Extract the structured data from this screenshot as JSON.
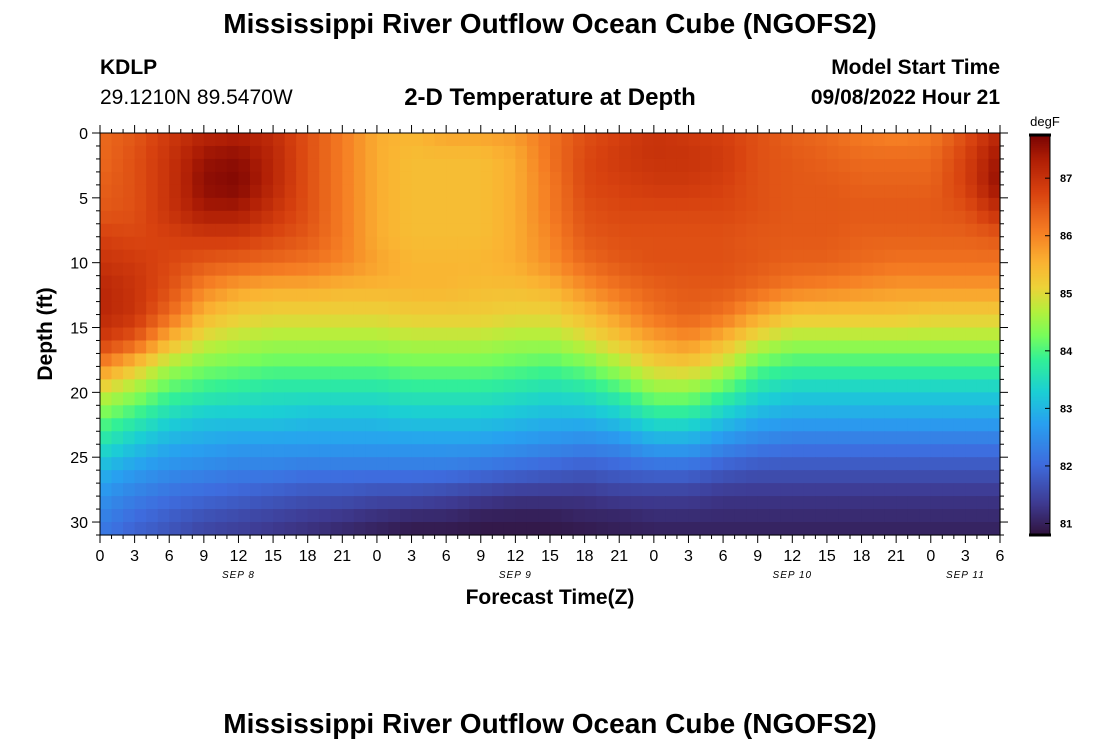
{
  "header": {
    "title": "Mississippi River Outflow Ocean Cube (NGOFS2)",
    "station": "KDLP",
    "coords": "29.1210N  89.5470W",
    "subtitle": "2-D Temperature at Depth",
    "model_start_label": "Model Start Time",
    "model_start_value": "09/08/2022 Hour 21"
  },
  "footer": {
    "title": "Mississippi River Outflow Ocean Cube (NGOFS2)"
  },
  "chart_data": {
    "type": "heatmap",
    "title": "2-D Temperature at Depth",
    "xlabel": "Forecast Time(Z)",
    "ylabel": "Depth (ft)",
    "x_range_hours": [
      0,
      78
    ],
    "y_range": [
      0,
      31
    ],
    "y_inverted": true,
    "x_tick_labels": [
      "0",
      "3",
      "6",
      "9",
      "12",
      "15",
      "18",
      "21",
      "0",
      "3",
      "6",
      "9",
      "12",
      "15",
      "18",
      "21",
      "0",
      "3",
      "6",
      "9",
      "12",
      "15",
      "18",
      "21",
      "0",
      "3",
      "6"
    ],
    "y_ticks": [
      0,
      5,
      10,
      15,
      20,
      25,
      30
    ],
    "date_labels": [
      {
        "label": "SEP 8",
        "hour": 12
      },
      {
        "label": "SEP 9",
        "hour": 36
      },
      {
        "label": "SEP 10",
        "hour": 60
      },
      {
        "label": "SEP 11",
        "hour": 75
      }
    ],
    "colorbar": {
      "unit": "degF",
      "min": 80.8,
      "max": 87.75,
      "ticks": [
        81,
        82,
        83,
        84,
        85,
        86,
        87
      ]
    },
    "time_nodes_hours": [
      0,
      3,
      6,
      9,
      12,
      15,
      18,
      21,
      24,
      27,
      30,
      33,
      36,
      39,
      42,
      45,
      48,
      51,
      54,
      57,
      60,
      63,
      66,
      69,
      72,
      75,
      78
    ],
    "depth_nodes_ft": [
      0,
      2,
      4,
      6,
      8,
      10,
      12,
      14,
      16,
      18,
      20,
      22,
      24,
      26,
      28,
      30,
      31
    ],
    "values_degF": [
      [
        86.3,
        86.5,
        86.9,
        87.2,
        87.3,
        87.1,
        86.6,
        86.1,
        85.6,
        85.5,
        85.7,
        85.7,
        85.8,
        86.2,
        86.6,
        86.8,
        87.0,
        86.9,
        86.8,
        86.6,
        86.4,
        86.3,
        86.1,
        86.0,
        86.1,
        86.6,
        87.2
      ],
      [
        86.3,
        86.6,
        87.0,
        87.5,
        87.6,
        87.2,
        86.6,
        86.1,
        85.6,
        85.4,
        85.4,
        85.4,
        85.6,
        86.2,
        86.7,
        86.9,
        87.0,
        87.0,
        86.9,
        86.6,
        86.5,
        86.4,
        86.3,
        86.3,
        86.3,
        86.8,
        87.5
      ],
      [
        86.4,
        86.6,
        87.0,
        87.6,
        87.7,
        87.2,
        86.6,
        86.1,
        85.6,
        85.4,
        85.4,
        85.4,
        85.6,
        86.1,
        86.7,
        86.8,
        86.9,
        86.9,
        86.8,
        86.6,
        86.5,
        86.5,
        86.4,
        86.4,
        86.4,
        86.8,
        87.6
      ],
      [
        86.5,
        86.6,
        87.0,
        87.4,
        87.4,
        87.0,
        86.6,
        86.1,
        85.6,
        85.4,
        85.4,
        85.4,
        85.6,
        86.1,
        86.6,
        86.7,
        86.7,
        86.7,
        86.7,
        86.6,
        86.5,
        86.5,
        86.5,
        86.5,
        86.5,
        86.6,
        87.1
      ],
      [
        86.8,
        86.7,
        86.8,
        86.9,
        86.9,
        86.7,
        86.5,
        86.1,
        85.6,
        85.4,
        85.4,
        85.4,
        85.6,
        86.0,
        86.5,
        86.6,
        86.6,
        86.6,
        86.6,
        86.5,
        86.5,
        86.5,
        86.4,
        86.4,
        86.4,
        86.4,
        86.5
      ],
      [
        87.0,
        86.9,
        86.7,
        86.5,
        86.4,
        86.3,
        86.2,
        86.0,
        85.7,
        85.5,
        85.5,
        85.5,
        85.6,
        85.9,
        86.3,
        86.5,
        86.6,
        86.6,
        86.6,
        86.5,
        86.4,
        86.4,
        86.3,
        86.2,
        86.2,
        86.2,
        86.2
      ],
      [
        87.2,
        87.0,
        86.6,
        86.0,
        85.7,
        85.6,
        85.6,
        85.5,
        85.5,
        85.5,
        85.5,
        85.4,
        85.4,
        85.5,
        85.9,
        86.2,
        86.4,
        86.5,
        86.5,
        86.3,
        86.1,
        86.0,
        85.9,
        85.8,
        85.8,
        85.8,
        85.8
      ],
      [
        87.2,
        87.0,
        86.3,
        85.5,
        85.2,
        85.1,
        85.1,
        85.1,
        85.1,
        85.2,
        85.2,
        85.2,
        85.1,
        85.1,
        85.4,
        85.8,
        86.2,
        86.4,
        86.2,
        85.7,
        85.3,
        85.3,
        85.3,
        85.3,
        85.2,
        85.2,
        85.2
      ],
      [
        86.9,
        86.5,
        85.5,
        84.9,
        84.7,
        84.6,
        84.6,
        84.6,
        84.6,
        84.7,
        84.7,
        84.7,
        84.6,
        84.6,
        84.9,
        85.3,
        85.7,
        85.9,
        85.5,
        84.9,
        84.6,
        84.6,
        84.6,
        84.6,
        84.6,
        84.6,
        84.6
      ],
      [
        86.0,
        85.3,
        84.6,
        84.3,
        84.2,
        84.1,
        84.1,
        84.1,
        84.1,
        84.2,
        84.2,
        84.2,
        84.1,
        84.0,
        84.2,
        84.6,
        85.1,
        85.2,
        84.8,
        84.1,
        83.9,
        83.9,
        83.9,
        83.9,
        83.9,
        83.9,
        83.9
      ],
      [
        84.9,
        84.5,
        84.0,
        83.8,
        83.7,
        83.6,
        83.6,
        83.6,
        83.6,
        83.7,
        83.7,
        83.7,
        83.6,
        83.5,
        83.6,
        83.9,
        84.4,
        84.4,
        84.0,
        83.5,
        83.3,
        83.3,
        83.3,
        83.3,
        83.3,
        83.3,
        83.3
      ],
      [
        84.2,
        83.8,
        83.4,
        83.2,
        83.2,
        83.2,
        83.1,
        83.1,
        83.1,
        83.2,
        83.2,
        83.2,
        83.1,
        83.0,
        83.0,
        83.2,
        83.6,
        83.6,
        83.2,
        82.9,
        82.8,
        82.8,
        82.8,
        82.8,
        82.8,
        82.8,
        82.8
      ],
      [
        83.6,
        83.2,
        82.9,
        82.8,
        82.7,
        82.7,
        82.7,
        82.7,
        82.7,
        82.7,
        82.7,
        82.7,
        82.6,
        82.5,
        82.4,
        82.5,
        82.8,
        82.8,
        82.5,
        82.3,
        82.2,
        82.2,
        82.2,
        82.2,
        82.2,
        82.2,
        82.2
      ],
      [
        83.0,
        82.7,
        82.5,
        82.4,
        82.3,
        82.3,
        82.2,
        82.2,
        82.2,
        82.2,
        82.2,
        82.1,
        82.0,
        81.9,
        81.8,
        81.9,
        82.0,
        82.0,
        81.8,
        81.7,
        81.7,
        81.7,
        81.7,
        81.7,
        81.7,
        81.7,
        81.7
      ],
      [
        82.6,
        82.3,
        82.1,
        82.0,
        81.9,
        81.8,
        81.7,
        81.7,
        81.6,
        81.6,
        81.5,
        81.4,
        81.3,
        81.3,
        81.3,
        81.4,
        81.4,
        81.4,
        81.3,
        81.3,
        81.3,
        81.3,
        81.3,
        81.3,
        81.3,
        81.3,
        81.3
      ],
      [
        82.3,
        82.0,
        81.8,
        81.6,
        81.5,
        81.4,
        81.3,
        81.2,
        81.1,
        81.0,
        81.0,
        80.9,
        80.9,
        80.9,
        81.0,
        81.0,
        81.1,
        81.1,
        81.1,
        81.1,
        81.1,
        81.1,
        81.1,
        81.1,
        81.1,
        81.1,
        81.1
      ],
      [
        82.2,
        81.9,
        81.7,
        81.5,
        81.4,
        81.3,
        81.2,
        81.1,
        81.0,
        80.9,
        80.9,
        80.9,
        80.9,
        80.9,
        80.9,
        81.0,
        81.0,
        81.0,
        81.0,
        81.0,
        81.0,
        81.0,
        81.0,
        81.0,
        81.0,
        81.0,
        81.0
      ]
    ]
  }
}
